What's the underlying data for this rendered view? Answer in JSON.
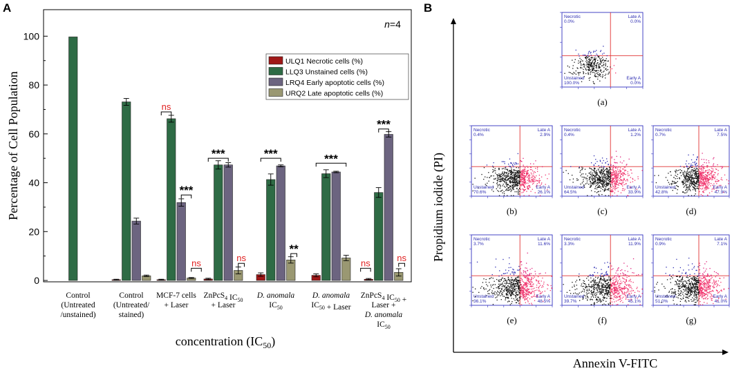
{
  "panel_a": {
    "letter": "A",
    "n_label": "n=4",
    "n_italic": "n",
    "n_value": "=4"
  },
  "panel_b": {
    "letter": "B",
    "ylabel": "Propidium iodide (PI)",
    "xlabel": "Annexin V-FITC",
    "plots": [
      {
        "label": "(a)",
        "necrotic": "0.0%",
        "late": "0.0%",
        "unstained": "100.0%",
        "early": "0.0%",
        "spread": 0.15,
        "red": 0.0
      },
      {
        "label": "(b)",
        "necrotic": "0.4%",
        "late": "2.9%",
        "unstained": "70.6%",
        "early": "26.1%",
        "spread": 0.3,
        "red": 0.28
      },
      {
        "label": "(c)",
        "necrotic": "0.4%",
        "late": "1.2%",
        "unstained": "64.5%",
        "early": "33.9%",
        "spread": 0.3,
        "red": 0.35
      },
      {
        "label": "(d)",
        "necrotic": "0.7%",
        "late": "7.5%",
        "unstained": "42.8%",
        "early": "47.9%",
        "spread": 0.32,
        "red": 0.52
      },
      {
        "label": "(e)",
        "necrotic": "3.7%",
        "late": "11.6%",
        "unstained": "36.1%",
        "early": "48.5%",
        "spread": 0.5,
        "red": 0.6
      },
      {
        "label": "(f)",
        "necrotic": "3.3%",
        "late": "11.9%",
        "unstained": "39.7%",
        "early": "45.1%",
        "spread": 0.5,
        "red": 0.57
      },
      {
        "label": "(g)",
        "necrotic": "0.9%",
        "late": "7.1%",
        "unstained": "51.0%",
        "early": "41.0%",
        "spread": 0.45,
        "red": 0.48
      }
    ],
    "quadrant_titles": {
      "necrotic": "Necrotic",
      "late": "Late A",
      "unstained": "Unstained",
      "early": "Early A"
    }
  },
  "chart_data": [
    {
      "type": "bar",
      "title": "",
      "ylabel": "Percentage of Cell Population",
      "xlabel_main": "concentration (IC",
      "xlabel_sub": "50",
      "xlabel_end": ")",
      "ylim": [
        0,
        110
      ],
      "yticks": [
        0,
        20,
        40,
        60,
        80,
        100
      ],
      "categories": [
        [
          "Control",
          "(Untreated",
          "/unstained)"
        ],
        [
          "Control",
          "(Untreated/",
          "stained)"
        ],
        [
          "MCF-7 cells",
          "+ Laser"
        ],
        [
          "ZnPcS4 IC50",
          "+ Laser"
        ],
        [
          "D. anomala",
          "IC50"
        ],
        [
          "D. anomala",
          "IC50 + Laser"
        ],
        [
          "ZnPcS4 IC50 +",
          "Laser +",
          "D. anomala",
          "IC50"
        ]
      ],
      "series": [
        {
          "name": "ULQ1 Necrotic cells (%)",
          "color": "#a01818",
          "values": [
            0,
            0.3,
            0.3,
            0.6,
            2.4,
            2.1,
            0.5
          ],
          "errors": [
            0,
            0.2,
            0.2,
            0.3,
            0.7,
            0.6,
            0.3
          ]
        },
        {
          "name": "LLQ3 Unstained cells (%)",
          "color": "#2e6b45",
          "values": [
            99.7,
            73.1,
            66.2,
            47.3,
            41.3,
            43.7,
            36.0
          ],
          "errors": [
            0,
            1.4,
            1.4,
            1.7,
            2.3,
            1.6,
            2.0
          ]
        },
        {
          "name": "LRQ4 Early apoptotic cells (%)",
          "color": "#6c6480",
          "values": [
            0,
            24.3,
            31.9,
            47.3,
            46.9,
            44.4,
            59.8
          ],
          "errors": [
            0,
            1.2,
            1.5,
            0.9,
            0.4,
            0.3,
            1.1
          ]
        },
        {
          "name": "URQ2 Late apoptotic cells (%)",
          "color": "#9a9872",
          "values": [
            0,
            1.9,
            1.0,
            4.1,
            8.4,
            9.2,
            3.3
          ],
          "errors": [
            0,
            0.3,
            0.2,
            1.4,
            1.3,
            1.1,
            1.5
          ]
        }
      ],
      "annotations": [
        {
          "text": "ns",
          "kind": "ns",
          "group": 2,
          "from": 0,
          "to": 1,
          "y": 69
        },
        {
          "text": "***",
          "kind": "stars",
          "group": 2,
          "from": 2,
          "to": 3,
          "y": 35
        },
        {
          "text": "ns",
          "kind": "ns",
          "group": 2,
          "from": 3,
          "to": 4,
          "y": 5
        },
        {
          "text": "***",
          "kind": "stars",
          "group": 3,
          "from": 0,
          "to": 2,
          "y": 50
        },
        {
          "text": "ns",
          "kind": "ns",
          "group": 3,
          "from": 3,
          "to": 3.6,
          "y": 7
        },
        {
          "text": "***",
          "kind": "stars",
          "group": 4,
          "from": 0,
          "to": 2,
          "y": 50
        },
        {
          "text": "**",
          "kind": "stars",
          "group": 4,
          "from": 3,
          "to": 3.6,
          "y": 11
        },
        {
          "text": "***",
          "kind": "stars",
          "group": 5,
          "from": 0,
          "to": 3,
          "y": 48
        },
        {
          "text": "ns",
          "kind": "ns",
          "group": 6,
          "from": -0.8,
          "to": 0.2,
          "y": 5
        },
        {
          "text": "***",
          "kind": "stars",
          "group": 6,
          "from": 1,
          "to": 2,
          "y": 62
        },
        {
          "text": "ns",
          "kind": "ns",
          "group": 6,
          "from": 3,
          "to": 3.6,
          "y": 7
        }
      ]
    }
  ]
}
